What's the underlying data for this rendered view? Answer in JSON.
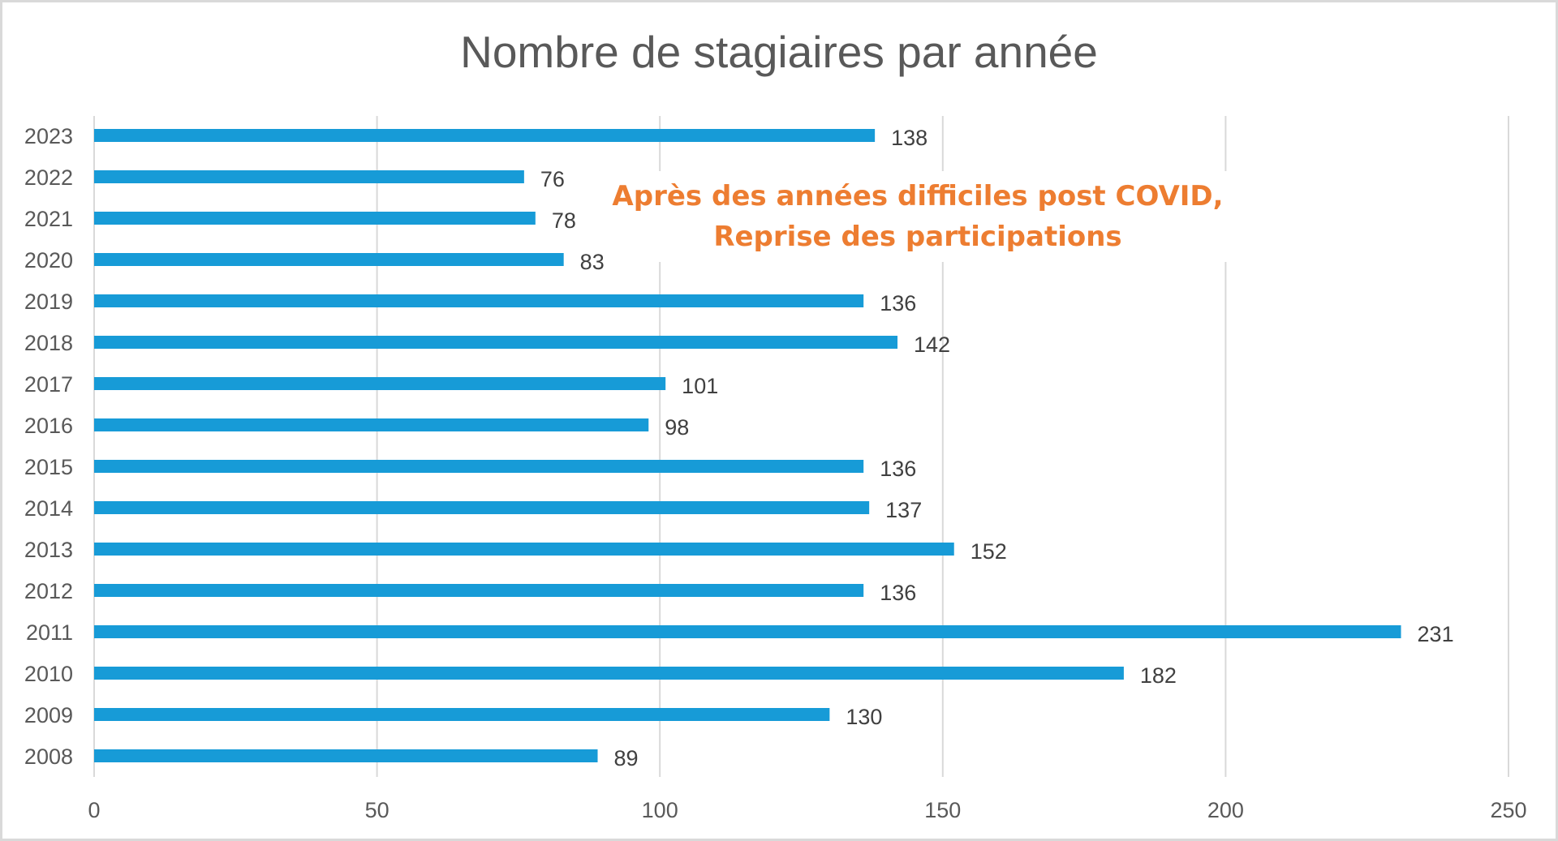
{
  "chart_data": {
    "type": "bar",
    "orientation": "horizontal",
    "title": "Nombre de stagiaires par année",
    "xlabel": "",
    "ylabel": "",
    "categories": [
      "2023",
      "2022",
      "2021",
      "2020",
      "2019",
      "2018",
      "2017",
      "2016",
      "2015",
      "2014",
      "2013",
      "2012",
      "2011",
      "2010",
      "2009",
      "2008"
    ],
    "values": [
      138,
      76,
      78,
      83,
      136,
      142,
      101,
      98,
      136,
      137,
      152,
      136,
      231,
      182,
      130,
      89
    ],
    "data_labels": [
      "138",
      "76",
      "78",
      "83",
      "136",
      "142",
      "101",
      "98",
      "136",
      "137",
      "152",
      "136",
      "231",
      "182",
      "130",
      "89"
    ],
    "xlim": [
      0,
      250
    ],
    "x_ticks": [
      0,
      50,
      100,
      150,
      200,
      250
    ],
    "x_tick_labels": [
      "0",
      "50",
      "100",
      "150",
      "200",
      "250"
    ],
    "grid": "vertical",
    "legend": "none",
    "bar_color": "#179bd7",
    "annotation": {
      "lines": [
        "Après des années difficiles post COVID,",
        "Reprise des participations"
      ],
      "color": "#ed7d31"
    }
  }
}
